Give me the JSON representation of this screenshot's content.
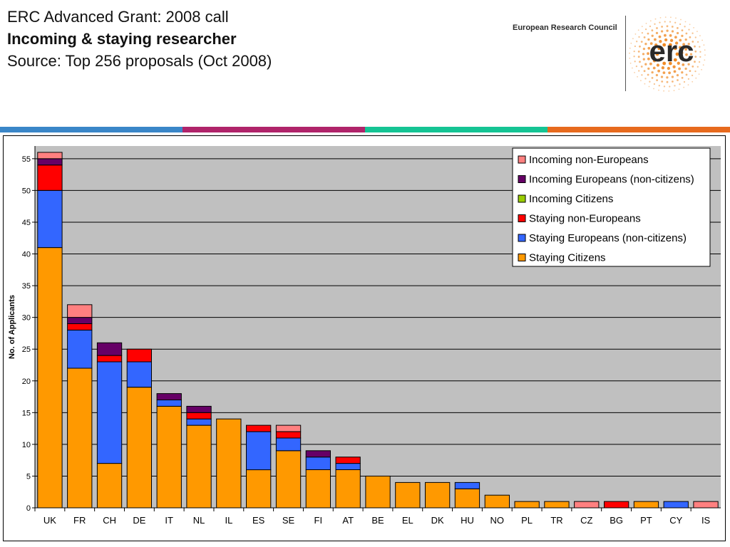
{
  "header": {
    "line1": "ERC Advanced Grant: 2008 call",
    "line2": "Incoming & staying researcher",
    "line3": "Source: Top 256 proposals (Oct 2008)"
  },
  "org": {
    "name": "European Research Council",
    "logo_text": "erc"
  },
  "colors": {
    "stripe": [
      "#3a86c8",
      "#b0246a",
      "#15c494",
      "#e76a1e"
    ],
    "plot_bg": "#c0c0c0",
    "logo_dots": "#f08a24"
  },
  "chart_data": {
    "type": "bar",
    "stacked": true,
    "categories": [
      "UK",
      "FR",
      "CH",
      "DE",
      "IT",
      "NL",
      "IL",
      "ES",
      "SE",
      "FI",
      "AT",
      "BE",
      "EL",
      "DK",
      "HU",
      "NO",
      "PL",
      "TR",
      "CZ",
      "BG",
      "PT",
      "CY",
      "IS"
    ],
    "series": [
      {
        "name": "Staying Citizens",
        "color": "#ff9900",
        "values": [
          41,
          22,
          7,
          19,
          16,
          13,
          14,
          6,
          9,
          6,
          6,
          5,
          4,
          4,
          3,
          2,
          1,
          1,
          0,
          0,
          1,
          0,
          0
        ]
      },
      {
        "name": "Staying Europeans (non-citizens)",
        "color": "#3366ff",
        "values": [
          9,
          6,
          16,
          4,
          1,
          1,
          0,
          6,
          2,
          2,
          1,
          0,
          0,
          0,
          1,
          0,
          0,
          0,
          0,
          0,
          0,
          1,
          0
        ]
      },
      {
        "name": "Staying non-Europeans",
        "color": "#ff0000",
        "values": [
          4,
          1,
          1,
          2,
          0,
          1,
          0,
          1,
          1,
          0,
          1,
          0,
          0,
          0,
          0,
          0,
          0,
          0,
          0,
          1,
          0,
          0,
          0
        ]
      },
      {
        "name": "Incoming Citizens",
        "color": "#99cc00",
        "values": [
          0,
          0,
          0,
          0,
          0,
          0,
          0,
          0,
          0,
          0,
          0,
          0,
          0,
          0,
          0,
          0,
          0,
          0,
          0,
          0,
          0,
          0,
          0
        ]
      },
      {
        "name": "Incoming Europeans (non-citizens)",
        "color": "#660066",
        "values": [
          1,
          1,
          2,
          0,
          1,
          1,
          0,
          0,
          0,
          1,
          0,
          0,
          0,
          0,
          0,
          0,
          0,
          0,
          0,
          0,
          0,
          0,
          0
        ]
      },
      {
        "name": "Incoming non-Europeans",
        "color": "#ff8080",
        "values": [
          1,
          2,
          0,
          0,
          0,
          0,
          0,
          0,
          1,
          0,
          0,
          0,
          0,
          0,
          0,
          0,
          0,
          0,
          1,
          0,
          0,
          0,
          1
        ]
      }
    ],
    "title": "",
    "xlabel": "",
    "ylabel": "No. of Applicants",
    "ylim": [
      0,
      57
    ],
    "yticks": [
      0,
      5,
      10,
      15,
      20,
      25,
      30,
      35,
      40,
      45,
      50,
      55
    ],
    "grid": true,
    "legend_position": "top-right",
    "legend_order": [
      "Incoming non-Europeans",
      "Incoming Europeans (non-citizens)",
      "Incoming Citizens",
      "Staying non-Europeans",
      "Staying Europeans (non-citizens)",
      "Staying Citizens"
    ]
  }
}
